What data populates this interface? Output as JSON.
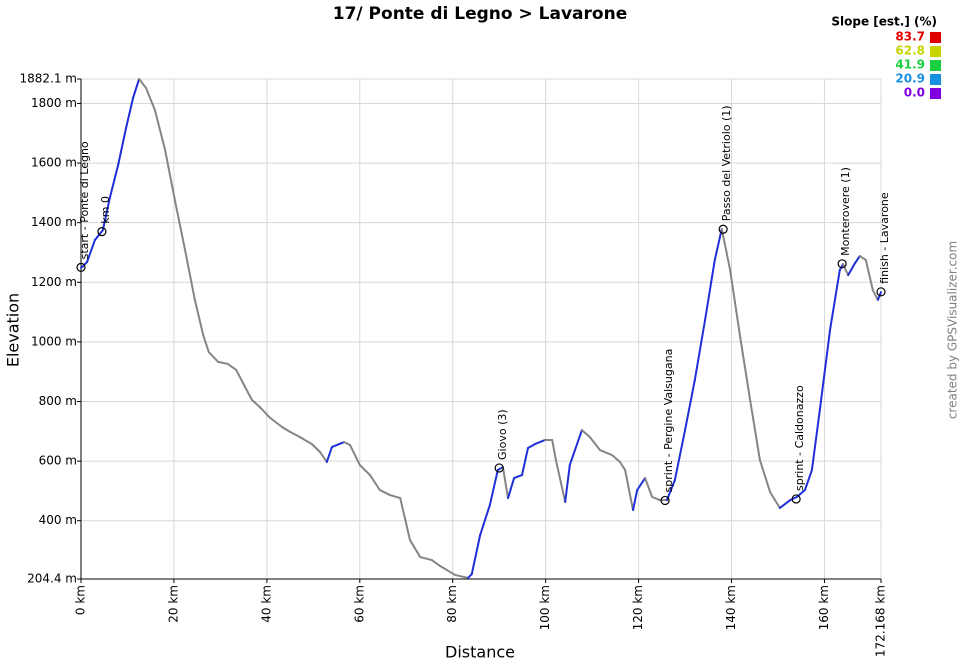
{
  "chart_data": {
    "type": "line",
    "title": "17/ Ponte di Legno > Lavarone",
    "x_label": "Distance",
    "y_label": "Elevation",
    "credit": "created by GPSVisualizer.com",
    "legend_title": "Slope [est.] (%)",
    "slope_scale": [
      {
        "value": 83.7,
        "color": "#e00000"
      },
      {
        "value": 62.8,
        "color": "#c8d400"
      },
      {
        "value": 41.9,
        "color": "#18d040"
      },
      {
        "value": 20.9,
        "color": "#1890e0"
      },
      {
        "value": {
          "value": 0,
          "label": "0.0"
        },
        "color": "#8000e0"
      }
    ],
    "x": [
      0,
      1.3,
      3.0,
      4.7,
      6.2,
      8.0,
      9.7,
      11.2,
      12.5,
      14.0,
      15.9,
      18.1,
      20.2,
      22.4,
      24.5,
      26.3,
      27.5,
      29.5,
      31.6,
      33.4,
      35.1,
      36.8,
      38.5,
      40.7,
      43.3,
      45.0,
      47.1,
      49.7,
      51.4,
      52.9,
      54.0,
      56.6,
      57.9,
      60.0,
      62.2,
      64.3,
      66.5,
      68.7,
      70.8,
      73.0,
      75.5,
      77.3,
      80.5,
      83.3,
      84.1,
      85.9,
      88.0,
      89.7,
      90.8,
      91.9,
      93.2,
      94.9,
      96.2,
      97.7,
      99.9,
      101.4,
      102.2,
      104.2,
      105.2,
      107.8,
      109.5,
      111.7,
      114.3,
      116.0,
      117.1,
      118.8,
      119.7,
      121.4,
      122.9,
      124.6,
      126.1,
      127.8,
      130.0,
      132.1,
      134.3,
      136.4,
      137.9,
      139.7,
      141.8,
      144.0,
      146.1,
      148.3,
      150.4,
      152.6,
      154.1,
      155.8,
      157.3,
      159.0,
      161.2,
      163.3,
      164.0,
      165.1,
      166.6,
      167.6,
      168.9,
      170.4,
      171.5,
      172.168
    ],
    "series": [
      {
        "climb_color": "#1f2fd8",
        "descent_color": "#858585",
        "values": [
          1248,
          1268,
          1342,
          1375,
          1483,
          1594,
          1718,
          1818,
          1882,
          1852,
          1778,
          1644,
          1476,
          1308,
          1141,
          1023,
          966,
          933,
          926,
          906,
          855,
          805,
          781,
          745,
          714,
          698,
          681,
          657,
          631,
          597,
          647,
          664,
          654,
          587,
          553,
          503,
          486,
          476,
          335,
          278,
          268,
          248,
          218,
          208,
          221,
          352,
          453,
          570,
          580,
          476,
          543,
          553,
          644,
          657,
          671,
          671,
          604,
          463,
          587,
          704,
          681,
          637,
          620,
          597,
          570,
          436,
          503,
          543,
          480,
          469,
          469,
          536,
          704,
          872,
          1073,
          1275,
          1379,
          1241,
          1023,
          805,
          604,
          496,
          443,
          469,
          480,
          503,
          570,
          771,
          1040,
          1241,
          1261,
          1224,
          1265,
          1288,
          1275,
          1174,
          1141,
          1167
        ]
      }
    ],
    "waypoints": [
      {
        "name": "start - Ponte di Legno",
        "x": 0,
        "y": 1250
      },
      {
        "name": "km 0",
        "x": 4.5,
        "y": 1370
      },
      {
        "name": "Giovo (3)",
        "x": 90.0,
        "y": 577
      },
      {
        "name": "sprint - Pergine Valsugana",
        "x": 125.7,
        "y": 468
      },
      {
        "name": "Passo del Vetriolo (1)",
        "x": 138.2,
        "y": 1378
      },
      {
        "name": "sprint - Caldonazzo",
        "x": 153.9,
        "y": 473
      },
      {
        "name": "Monterovere (1)",
        "x": 163.8,
        "y": 1262
      },
      {
        "name": "finish - Lavarone",
        "x": 172.168,
        "y": 1168
      }
    ],
    "xlim": [
      0,
      172.168
    ],
    "ylim": [
      204.4,
      1882.1
    ],
    "xticks": [
      {
        "value": 0,
        "label": "0 km"
      },
      {
        "value": 20,
        "label": "20 km"
      },
      {
        "value": 40,
        "label": "40 km"
      },
      {
        "value": 60,
        "label": "60 km"
      },
      {
        "value": 80,
        "label": "80 km"
      },
      {
        "value": 100,
        "label": "100 km"
      },
      {
        "value": 120,
        "label": "120 km"
      },
      {
        "value": 140,
        "label": "140 km"
      },
      {
        "value": 160,
        "label": "160 km"
      },
      {
        "value": 172.168,
        "label": "172.168 km"
      }
    ],
    "yticks": [
      {
        "value": 204.4,
        "label": "204.4 m"
      },
      {
        "value": 400,
        "label": "400 m"
      },
      {
        "value": 600,
        "label": "600 m"
      },
      {
        "value": 800,
        "label": "800 m"
      },
      {
        "value": 1000,
        "label": "1000 m"
      },
      {
        "value": 1200,
        "label": "1200 m"
      },
      {
        "value": 1400,
        "label": "1400 m"
      },
      {
        "value": 1600,
        "label": "1600 m"
      },
      {
        "value": 1800,
        "label": "1800 m"
      },
      {
        "value": 1882.1,
        "label": "1882.1 m"
      }
    ],
    "grid": true
  }
}
